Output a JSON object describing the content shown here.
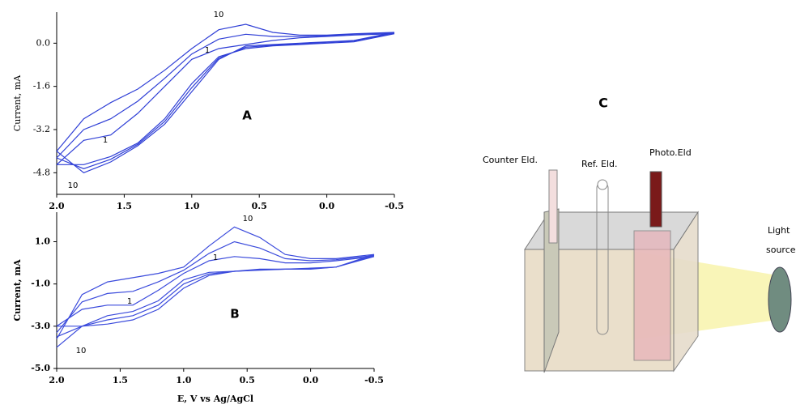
{
  "chart_data": [
    {
      "type": "line",
      "panel": "A",
      "ylabel": "Current, mA",
      "x": [
        2.0,
        1.8,
        1.6,
        1.4,
        1.2,
        1.0,
        0.8,
        0.6,
        0.4,
        0.2,
        0.0,
        -0.2,
        -0.5,
        -0.2,
        0.0,
        0.2,
        0.4,
        0.6,
        0.8,
        1.0,
        1.2,
        1.4,
        1.6,
        1.8,
        2.0
      ],
      "series": [
        {
          "color": "#2f3fd6",
          "values": [
            -4.5,
            -3.6,
            -3.4,
            -2.6,
            -1.6,
            -0.6,
            -0.2,
            -0.05,
            0.1,
            0.2,
            0.25,
            0.3,
            0.35,
            0.05,
            0,
            -0.05,
            -0.1,
            -0.2,
            -0.5,
            -1.5,
            -2.8,
            -3.7,
            -4.2,
            -4.5,
            -4.5
          ]
        },
        {
          "color": "#2f3fd6",
          "values": [
            -4.25,
            -3.2,
            -2.8,
            -2.15,
            -1.3,
            -0.4,
            0.15,
            0.33,
            0.25,
            0.25,
            0.28,
            0.33,
            0.38,
            0.08,
            0.03,
            -0.03,
            -0.08,
            -0.15,
            -0.55,
            -1.65,
            -2.9,
            -3.75,
            -4.3,
            -4.65,
            -4.25
          ]
        },
        {
          "color": "#2f3fd6",
          "values": [
            -4.0,
            -2.8,
            -2.2,
            -1.7,
            -1.0,
            -0.2,
            0.5,
            0.7,
            0.4,
            0.3,
            0.3,
            0.35,
            0.4,
            0.1,
            0.05,
            0.0,
            -0.05,
            -0.1,
            -0.6,
            -1.8,
            -3.0,
            -3.8,
            -4.4,
            -4.8,
            -4.0
          ]
        }
      ],
      "annotations": [
        "10",
        "1",
        "1",
        "10"
      ],
      "xlim": [
        2.0,
        -0.5
      ],
      "xticks": [
        {
          "value": 2,
          "label": "2.0"
        },
        1.5,
        {
          "value": 1,
          "label": "1.0"
        },
        0.5,
        {
          "value": 0,
          "label": "0.0"
        },
        -0.5
      ],
      "ylim": [
        -5.6,
        1.15
      ],
      "yticks": [
        {
          "value": 0,
          "label": "0.0"
        },
        -1.6,
        -3.2,
        -4.8
      ]
    },
    {
      "type": "line",
      "panel": "B",
      "ylabel": "Current, mA",
      "xlabel": "E, V vs Ag/AgCl",
      "x": [
        2.0,
        1.8,
        1.6,
        1.4,
        1.2,
        1.0,
        0.8,
        0.6,
        0.4,
        0.2,
        0.0,
        -0.2,
        -0.5,
        -0.2,
        0.0,
        0.2,
        0.4,
        0.6,
        0.8,
        1.0,
        1.2,
        1.4,
        1.6,
        1.8,
        2.0
      ],
      "series": [
        {
          "color": "#3b4bdc",
          "values": [
            -3.0,
            -2.2,
            -2.0,
            -2.0,
            -1.3,
            -0.5,
            0.1,
            0.3,
            0.2,
            0.0,
            0,
            0.1,
            0.3,
            -0.2,
            -0.25,
            -0.3,
            -0.3,
            -0.4,
            -0.6,
            -1.2,
            -2.2,
            -2.7,
            -2.9,
            -3.0,
            -3.0
          ]
        },
        {
          "color": "#3b4bdc",
          "values": [
            -3.3,
            -1.85,
            -1.45,
            -1.35,
            -0.9,
            -0.35,
            0.45,
            1.0,
            0.7,
            0.2,
            0.1,
            0.15,
            0.35,
            -0.2,
            -0.28,
            -0.3,
            -0.33,
            -0.4,
            -0.53,
            -1.0,
            -2.0,
            -2.5,
            -2.7,
            -3.0,
            -3.5
          ]
        },
        {
          "color": "#3b4bdc",
          "values": [
            -3.6,
            -1.5,
            -0.9,
            -0.7,
            -0.5,
            -0.2,
            0.8,
            1.7,
            1.2,
            0.4,
            0.2,
            0.2,
            0.4,
            -0.2,
            -0.3,
            -0.3,
            -0.35,
            -0.4,
            -0.45,
            -0.8,
            -1.8,
            -2.3,
            -2.5,
            -3.0,
            -4.0
          ]
        }
      ],
      "annotations": [
        "10",
        "1",
        "1",
        "10"
      ],
      "xlim": [
        2.0,
        -0.5
      ],
      "xticks": [
        {
          "value": 2,
          "label": "2.0"
        },
        1.5,
        {
          "value": 1,
          "label": "1.0"
        },
        0.5,
        {
          "value": 0,
          "label": "0.0"
        },
        -0.5
      ],
      "ylim": [
        -5.0,
        2.4
      ],
      "yticks": [
        {
          "value": 1,
          "label": "1.0"
        },
        {
          "value": -1,
          "label": "-1.0"
        },
        {
          "value": -3,
          "label": "-3.0"
        },
        {
          "value": -5,
          "label": "-5.0"
        }
      ]
    }
  ],
  "diagram": {
    "title": "C",
    "counter": "Counter Eld.",
    "reference": "Ref. Eld.",
    "photo": "Photo.Eld",
    "light": [
      "Light",
      "source"
    ]
  }
}
